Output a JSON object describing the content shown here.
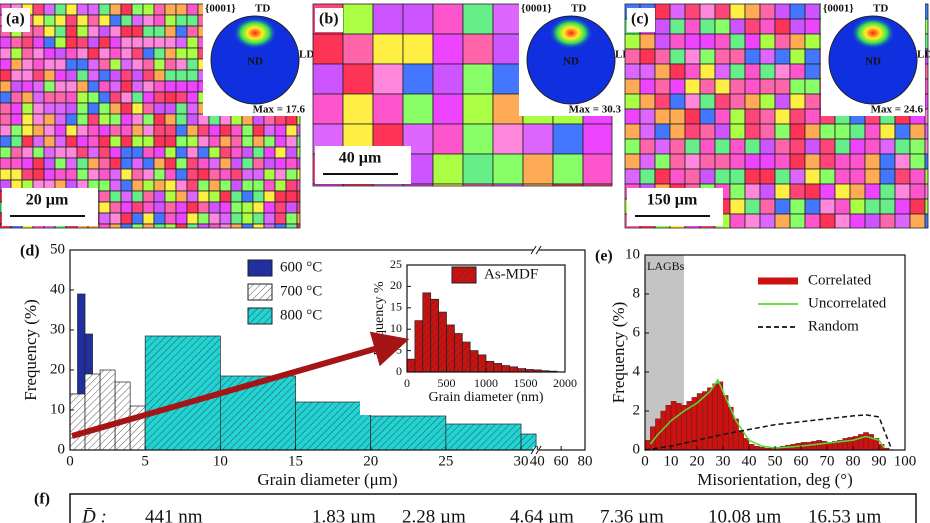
{
  "maps": [
    {
      "label": "(a)",
      "pole_figure": {
        "plane": "{0001}",
        "td": "TD",
        "ld": "LD",
        "nd": "ND",
        "max": "Max = 17.6"
      },
      "scale_bar": "20 µm"
    },
    {
      "label": "(b)",
      "pole_figure": {
        "plane": "{0001}",
        "td": "TD",
        "ld": "LD",
        "nd": "ND",
        "max": "Max = 30.3"
      },
      "scale_bar": "40 µm"
    },
    {
      "label": "(c)",
      "pole_figure": {
        "plane": "{0001}",
        "td": "TD",
        "ld": "LD",
        "nd": "ND",
        "max": "Max = 24.6"
      },
      "scale_bar": "150 µm"
    }
  ],
  "chart_data": [
    {
      "type": "histogram",
      "label": "(d)",
      "x_label": "Grain diameter (μm)",
      "y_label": "Frequency (%)",
      "xlim": [
        0,
        80
      ],
      "x_break": [
        31,
        39
      ],
      "ylim": [
        0,
        50
      ],
      "xticks": [
        0,
        5,
        10,
        15,
        20,
        25,
        30,
        40,
        60,
        80
      ],
      "yticks": [
        0,
        10,
        20,
        30,
        40,
        50
      ],
      "series": [
        {
          "name": "600 °C",
          "color": "#1f2fa8",
          "hatch": true,
          "bins": [
            0,
            0.5,
            1,
            1.5,
            2,
            2.5,
            3
          ],
          "values": [
            14,
            39,
            29,
            12,
            5,
            1
          ]
        },
        {
          "name": "700 °C",
          "color": "#ffffff",
          "hatch": true,
          "bins": [
            0,
            1,
            2,
            3,
            4,
            5,
            6,
            7,
            8,
            9,
            10
          ],
          "values": [
            14,
            19,
            20,
            17,
            11,
            9,
            5,
            3,
            2,
            1
          ]
        },
        {
          "name": "800 °C",
          "color": "#22d3d3",
          "hatch": true,
          "bins": [
            5,
            10,
            15,
            20,
            25,
            30,
            31
          ],
          "values": [
            28.5,
            18.5,
            12,
            8.5,
            6.5,
            4
          ]
        }
      ]
    },
    {
      "type": "histogram",
      "x_label": "Grain diameter (nm)",
      "y_label": "Frequency %",
      "xlim": [
        0,
        2000
      ],
      "ylim": [
        0,
        25
      ],
      "xticks": [
        0,
        500,
        1000,
        1500,
        2000
      ],
      "yticks": [
        0,
        5,
        10,
        15,
        20,
        25
      ],
      "series": [
        {
          "name": "As-MDF",
          "color": "#cc1111",
          "hatch": true,
          "bins": [
            0,
            100,
            200,
            300,
            400,
            500,
            600,
            700,
            800,
            900,
            1000,
            1100,
            1200,
            1300,
            1400,
            1500,
            1600,
            1700,
            1800,
            1900
          ],
          "values": [
            3,
            12,
            18.5,
            17,
            14,
            11,
            9,
            7,
            5,
            4,
            2.5,
            2,
            1.5,
            1.2,
            0.8,
            0.6,
            0.5,
            0.3,
            0.2
          ]
        }
      ]
    },
    {
      "type": "histogram",
      "label": "(e)",
      "x_label": "Misorientation, deg (°)",
      "y_label": "Frequency (%)",
      "xlim": [
        0,
        100
      ],
      "ylim": [
        0,
        10
      ],
      "xticks": [
        0,
        10,
        20,
        30,
        40,
        50,
        60,
        70,
        80,
        90,
        100
      ],
      "yticks": [
        0,
        2,
        4,
        6,
        8,
        10
      ],
      "shade": {
        "range": [
          0,
          15
        ],
        "label": "LAGBs"
      },
      "series": [
        {
          "name": "Correlated",
          "color": "#cc1111",
          "hatch": false,
          "bins": [
            0,
            2,
            4,
            6,
            8,
            10,
            12,
            14,
            16,
            18,
            20,
            22,
            24,
            26,
            28,
            30,
            32,
            34,
            36,
            38,
            40,
            42,
            44,
            46,
            48,
            50,
            52,
            54,
            56,
            58,
            60,
            62,
            64,
            66,
            68,
            70,
            72,
            74,
            76,
            78,
            80,
            82,
            84,
            86,
            88,
            90,
            92,
            94
          ],
          "values": [
            0.5,
            1.2,
            1.6,
            2.0,
            2.3,
            2.5,
            2.4,
            2.3,
            2.5,
            2.7,
            2.9,
            3.0,
            3.2,
            3.4,
            3.5,
            2.8,
            2.2,
            1.6,
            1.0,
            0.6,
            0.3,
            0.2,
            0.15,
            0.1,
            0.1,
            0.15,
            0.2,
            0.25,
            0.3,
            0.35,
            0.4,
            0.4,
            0.45,
            0.5,
            0.45,
            0.4,
            0.45,
            0.5,
            0.6,
            0.65,
            0.7,
            0.8,
            0.9,
            0.8,
            0.6,
            0.3,
            0.1
          ]
        },
        {
          "name": "Uncorrelated",
          "color": "#55dd33",
          "dash": false,
          "x": [
            2,
            5,
            10,
            15,
            20,
            25,
            28,
            30,
            35,
            40,
            45,
            50,
            60,
            70,
            80,
            85,
            90,
            92
          ],
          "values": [
            0.3,
            0.8,
            1.5,
            2.0,
            2.4,
            3.0,
            3.6,
            3.0,
            1.5,
            0.5,
            0.2,
            0.1,
            0.2,
            0.35,
            0.5,
            0.7,
            0.5,
            0.1
          ]
        },
        {
          "name": "Random",
          "color": "#111111",
          "dash": true,
          "x": [
            0,
            10,
            20,
            30,
            40,
            50,
            60,
            70,
            80,
            85,
            90,
            92,
            95
          ],
          "values": [
            0,
            0.2,
            0.5,
            0.8,
            1.05,
            1.3,
            1.45,
            1.6,
            1.75,
            1.8,
            1.7,
            1.0,
            0
          ]
        }
      ]
    }
  ],
  "panel_f": {
    "label": "(f)",
    "symbol": "D̄ :",
    "items": [
      {
        "text": "441 nm",
        "color": "#111111"
      },
      {
        "text": "1.83 µm",
        "color": "#dd1111"
      },
      {
        "text": "2.28 µm",
        "color": "#1a2fb0"
      },
      {
        "text": "4.64 µm",
        "color": "#dd1111"
      },
      {
        "text": "7.36 µm",
        "color": "#1a2fb0"
      },
      {
        "text": "10.08 µm",
        "color": "#dd1111"
      },
      {
        "text": "16.53 µm",
        "color": "#1a2fb0"
      }
    ]
  }
}
